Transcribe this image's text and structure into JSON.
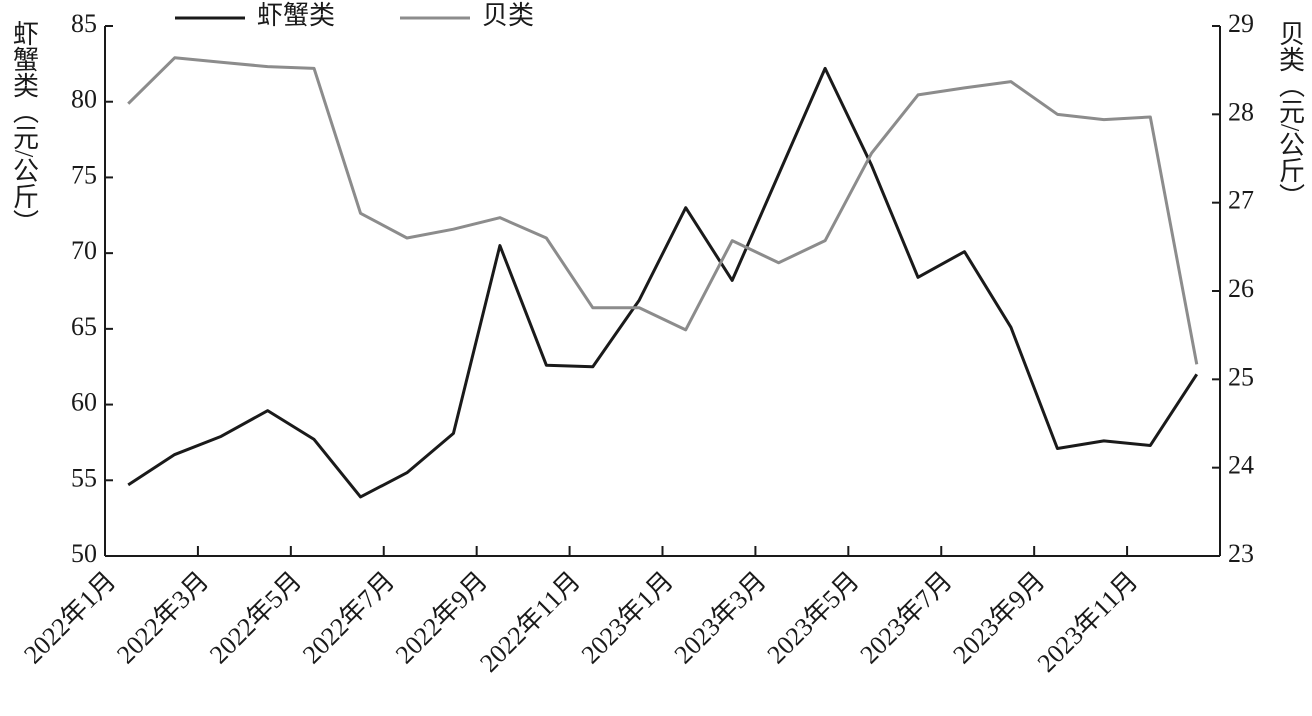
{
  "chart_data": {
    "type": "line",
    "categories": [
      "2022年1月",
      null,
      "2022年3月",
      null,
      "2022年5月",
      null,
      "2022年7月",
      null,
      "2022年9月",
      null,
      "2022年11月",
      null,
      "2023年1月",
      null,
      "2023年3月",
      null,
      "2023年5月",
      null,
      "2023年7月",
      null,
      "2023年9月",
      null,
      "2023年11月",
      null
    ],
    "series": [
      {
        "name": "虾蟹类",
        "color": "#1a1a1a",
        "values": [
          54.7,
          56.7,
          57.9,
          59.6,
          57.7,
          53.9,
          55.5,
          58.1,
          70.5,
          62.6,
          62.5,
          66.9,
          73.0,
          68.2,
          75.2,
          82.2,
          75.8,
          68.4,
          70.1,
          65.1,
          57.1,
          57.6,
          57.3,
          62.0
        ]
      },
      {
        "name": "贝类",
        "color": "#8c8c8c",
        "axis": "y2",
        "values": [
          28.12,
          28.64,
          28.59,
          28.54,
          28.52,
          26.88,
          26.6,
          26.7,
          26.83,
          26.6,
          25.81,
          25.81,
          25.56,
          26.57,
          26.32,
          26.57,
          27.56,
          28.22,
          28.3,
          28.37,
          28.0,
          27.94,
          27.97,
          25.17
        ]
      }
    ],
    "y_label": "虾蟹类（元/公斤）",
    "y2_label": "贝类（元/公斤）",
    "ylim": [
      50,
      85
    ],
    "yticks": [
      50,
      55,
      60,
      65,
      70,
      75,
      80,
      85
    ],
    "y2lim": [
      23,
      29
    ],
    "y2ticks": [
      23,
      24,
      25,
      26,
      27,
      28,
      29
    ],
    "legend": "top"
  }
}
